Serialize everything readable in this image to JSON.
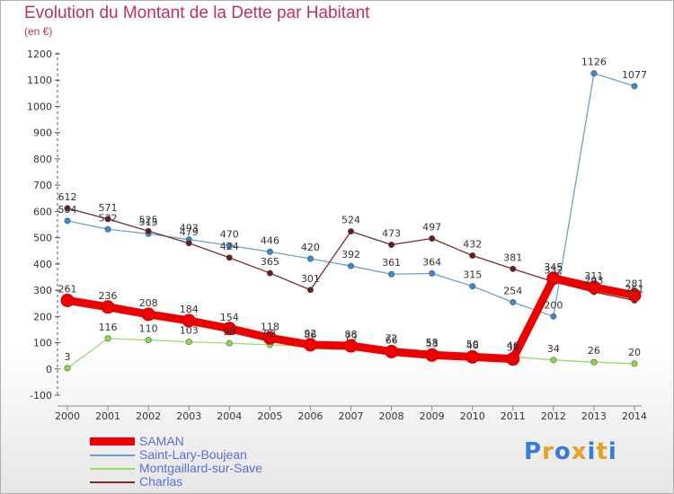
{
  "header": {
    "title": "Evolution du Montant de la Dette par Habitant",
    "unit": "(en €)"
  },
  "logo": {
    "text": "Proxiti",
    "colors": [
      "#3a7bd5",
      "#e8a020",
      "#3a7bd5",
      "#e8a020",
      "#3a7bd5",
      "#e8a020",
      "#3a7bd5"
    ]
  },
  "chart_data": {
    "type": "line",
    "title": "Evolution du Montant de la Dette par Habitant",
    "ylabel": "(en €)",
    "xlabel": "",
    "ylim": [
      -100,
      1200
    ],
    "yticks": [
      -100,
      0,
      100,
      200,
      300,
      400,
      500,
      600,
      700,
      800,
      900,
      1000,
      1100,
      1200
    ],
    "grid": false,
    "legend_position": "bottom-left",
    "x": [
      "2000",
      "2001",
      "2002",
      "2003",
      "2004",
      "2005",
      "2006",
      "2007",
      "2008",
      "2009",
      "2010",
      "2011",
      "2012",
      "2013",
      "2014"
    ],
    "series": [
      {
        "name": "Saint-Lary-Boujean",
        "color": "#6aa0d0",
        "marker": "#3a88d8",
        "values": [
          564,
          532,
          515,
          493,
          470,
          446,
          420,
          392,
          361,
          364,
          315,
          254,
          200,
          1126,
          1077
        ]
      },
      {
        "name": "Charlas",
        "color": "#7a2a2a",
        "marker": "#6a1a1a",
        "values": [
          612,
          571,
          525,
          479,
          424,
          365,
          301,
          524,
          473,
          497,
          432,
          381,
          332,
          293,
          261
        ]
      },
      {
        "name": "Montgaillard-sur-Save",
        "color": "#99dd66",
        "marker": "#88dd44",
        "values": [
          3,
          116,
          110,
          103,
          98,
          92,
          86,
          79,
          72,
          58,
          50,
          46,
          34,
          26,
          20
        ]
      },
      {
        "name": "SAMAN",
        "color": "#ee0000",
        "marker": "#ee0000",
        "values": [
          261,
          236,
          208,
          184,
          154,
          118,
          92,
          88,
          66,
          53,
          46,
          38,
          345,
          311,
          281
        ]
      }
    ]
  }
}
